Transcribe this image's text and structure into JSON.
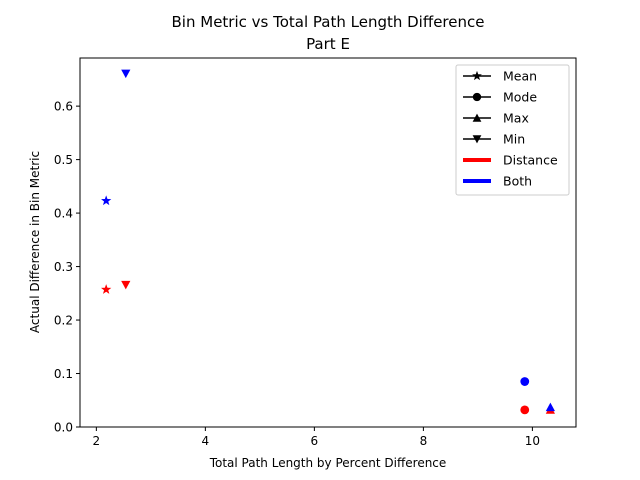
{
  "chart_data": {
    "type": "scatter",
    "title": "Bin Metric vs Total Path Length Difference",
    "subtitle": "Part E",
    "xlabel": "Total Path Length by Percent Difference",
    "ylabel": "Actual Difference in Bin Metric",
    "xlim": [
      1.7,
      10.8
    ],
    "ylim": [
      0.0,
      0.69
    ],
    "xticks": [
      2,
      4,
      6,
      8,
      10
    ],
    "xtick_labels": [
      "2",
      "4",
      "6",
      "8",
      "10"
    ],
    "yticks": [
      0.0,
      0.1,
      0.2,
      0.3,
      0.4,
      0.5,
      0.6
    ],
    "ytick_labels": [
      "0.0",
      "0.1",
      "0.2",
      "0.3",
      "0.4",
      "0.5",
      "0.6"
    ],
    "grid": false,
    "legend_position": "top-right",
    "marker_legend": [
      {
        "label": "Mean",
        "marker": "star"
      },
      {
        "label": "Mode",
        "marker": "circle"
      },
      {
        "label": "Max",
        "marker": "triangle-up"
      },
      {
        "label": "Min",
        "marker": "triangle-down"
      }
    ],
    "color_legend": [
      {
        "label": "Distance",
        "color": "#ff0000"
      },
      {
        "label": "Both",
        "color": "#0000ff"
      }
    ],
    "points": [
      {
        "group": "Distance",
        "stat": "Mean",
        "marker": "star",
        "color": "#ff0000",
        "x": 2.18,
        "y": 0.257
      },
      {
        "group": "Distance",
        "stat": "Min",
        "marker": "triangle-down",
        "color": "#ff0000",
        "x": 2.54,
        "y": 0.266
      },
      {
        "group": "Distance",
        "stat": "Mode",
        "marker": "circle",
        "color": "#ff0000",
        "x": 9.86,
        "y": 0.032
      },
      {
        "group": "Distance",
        "stat": "Max",
        "marker": "triangle-up",
        "color": "#ff0000",
        "x": 10.33,
        "y": 0.032
      },
      {
        "group": "Both",
        "stat": "Mean",
        "marker": "star",
        "color": "#0000ff",
        "x": 2.18,
        "y": 0.423
      },
      {
        "group": "Both",
        "stat": "Min",
        "marker": "triangle-down",
        "color": "#0000ff",
        "x": 2.54,
        "y": 0.661
      },
      {
        "group": "Both",
        "stat": "Mode",
        "marker": "circle",
        "color": "#0000ff",
        "x": 9.86,
        "y": 0.085
      },
      {
        "group": "Both",
        "stat": "Max",
        "marker": "triangle-up",
        "color": "#0000ff",
        "x": 10.33,
        "y": 0.037
      }
    ]
  }
}
